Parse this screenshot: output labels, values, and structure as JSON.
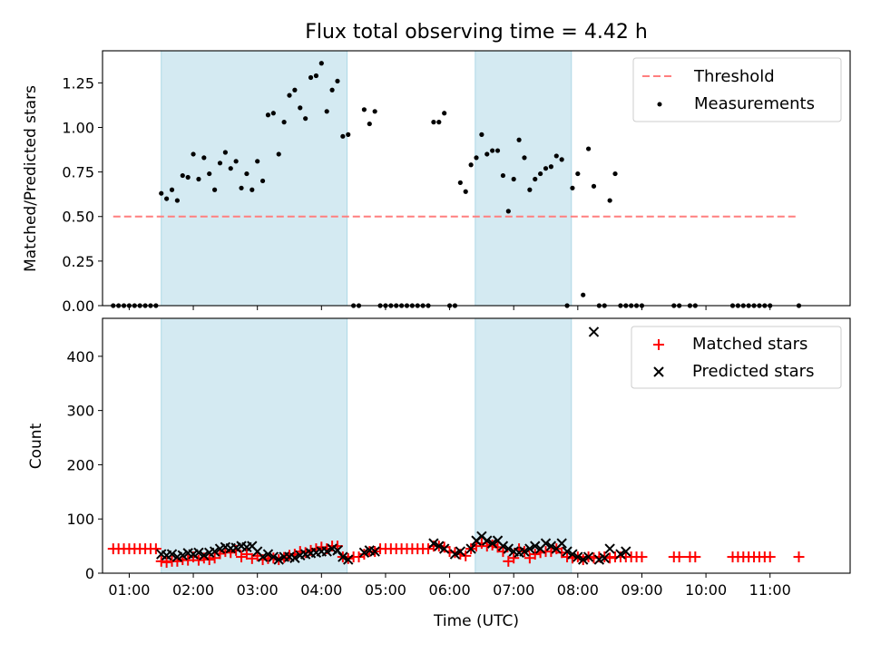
{
  "chart_data": [
    {
      "type": "scatter",
      "title": "Flux total observing time = 4.42 h",
      "xlabel": "",
      "ylabel": "Matched/Predicted stars",
      "xlim": [
        "00:35",
        "12:15"
      ],
      "ylim": [
        0,
        1.43
      ],
      "yticks": [
        "0.00",
        "0.25",
        "0.50",
        "0.75",
        "1.00",
        "1.25"
      ],
      "shaded_intervals": [
        [
          "01:30",
          "04:24"
        ],
        [
          "06:24",
          "07:54"
        ]
      ],
      "legend_position": "upper right",
      "series": [
        {
          "name": "Threshold",
          "kind": "line",
          "color": "#ff7f7f",
          "x": [
            "00:45",
            "11:27"
          ],
          "y": [
            0.5,
            0.5
          ]
        },
        {
          "name": "Measurements",
          "kind": "scatter",
          "color": "#000000",
          "x": [
            "00:45",
            "00:50",
            "00:55",
            "01:00",
            "01:05",
            "01:10",
            "01:15",
            "01:20",
            "01:25",
            "01:30",
            "01:35",
            "01:40",
            "01:45",
            "01:50",
            "01:55",
            "02:00",
            "02:05",
            "02:10",
            "02:15",
            "02:20",
            "02:25",
            "02:30",
            "02:35",
            "02:40",
            "02:45",
            "02:50",
            "02:55",
            "03:00",
            "03:05",
            "03:10",
            "03:15",
            "03:20",
            "03:25",
            "03:30",
            "03:35",
            "03:40",
            "03:45",
            "03:50",
            "03:55",
            "04:00",
            "04:05",
            "04:10",
            "04:15",
            "04:20",
            "04:25",
            "04:30",
            "04:35",
            "04:40",
            "04:45",
            "04:50",
            "04:55",
            "05:00",
            "05:05",
            "05:10",
            "05:15",
            "05:20",
            "05:25",
            "05:30",
            "05:35",
            "05:40",
            "05:45",
            "05:50",
            "05:55",
            "06:00",
            "06:05",
            "06:10",
            "06:15",
            "06:20",
            "06:25",
            "06:30",
            "06:35",
            "06:40",
            "06:45",
            "06:50",
            "06:55",
            "07:00",
            "07:05",
            "07:10",
            "07:15",
            "07:20",
            "07:25",
            "07:30",
            "07:35",
            "07:40",
            "07:45",
            "07:50",
            "07:55",
            "08:00",
            "08:05",
            "08:10",
            "08:15",
            "08:20",
            "08:25",
            "08:30",
            "08:35",
            "08:40",
            "08:45",
            "08:50",
            "08:55",
            "09:00",
            "09:30",
            "09:35",
            "09:45",
            "09:50",
            "10:25",
            "10:30",
            "10:35",
            "10:40",
            "10:45",
            "10:50",
            "10:55",
            "11:00",
            "11:27"
          ],
          "y": [
            0.0,
            0.0,
            0.0,
            0.0,
            0.0,
            0.0,
            0.0,
            0.0,
            0.0,
            0.63,
            0.6,
            0.65,
            0.59,
            0.73,
            0.72,
            0.85,
            0.71,
            0.83,
            0.74,
            0.65,
            0.8,
            0.86,
            0.77,
            0.81,
            0.66,
            0.74,
            0.65,
            0.81,
            0.7,
            1.07,
            1.08,
            0.85,
            1.03,
            1.18,
            1.21,
            1.11,
            1.05,
            1.28,
            1.29,
            1.36,
            1.09,
            1.21,
            1.26,
            0.95,
            0.96,
            0.0,
            0.0,
            1.1,
            1.02,
            1.09,
            0.0,
            0.0,
            0.0,
            0.0,
            0.0,
            0.0,
            0.0,
            0.0,
            0.0,
            0.0,
            1.03,
            1.03,
            1.08,
            0.0,
            0.0,
            0.69,
            0.64,
            0.79,
            0.83,
            0.96,
            0.85,
            0.87,
            0.87,
            0.73,
            0.53,
            0.71,
            0.93,
            0.83,
            0.65,
            0.71,
            0.74,
            0.77,
            0.78,
            0.84,
            0.82,
            0.0,
            0.66,
            0.74,
            0.06,
            0.88,
            0.67,
            0.0,
            0.0,
            0.59,
            0.74,
            0.0,
            0.0,
            0.0,
            0.0,
            0.0,
            0.0,
            0.0,
            0.0,
            0.0,
            0.0,
            0.0,
            0.0,
            0.0,
            0.0,
            0.0,
            0.0,
            0.0,
            0.0
          ]
        }
      ]
    },
    {
      "type": "scatter",
      "title": "",
      "xlabel": "Time (UTC)",
      "ylabel": "Count",
      "xlim": [
        "00:35",
        "12:15"
      ],
      "xticks": [
        "01:00",
        "02:00",
        "03:00",
        "04:00",
        "05:00",
        "06:00",
        "07:00",
        "08:00",
        "09:00",
        "10:00",
        "11:00"
      ],
      "ylim": [
        0,
        470
      ],
      "yticks": [
        "0",
        "100",
        "200",
        "300",
        "400"
      ],
      "shaded_intervals": [
        [
          "01:30",
          "04:24"
        ],
        [
          "06:24",
          "07:54"
        ]
      ],
      "legend_position": "upper right",
      "series": [
        {
          "name": "Matched stars",
          "kind": "scatter",
          "marker": "plus",
          "color": "#ff0000",
          "x": [
            "00:45",
            "00:50",
            "00:55",
            "01:00",
            "01:05",
            "01:10",
            "01:15",
            "01:20",
            "01:25",
            "01:30",
            "01:35",
            "01:40",
            "01:45",
            "01:50",
            "01:55",
            "02:00",
            "02:05",
            "02:10",
            "02:15",
            "02:20",
            "02:25",
            "02:30",
            "02:35",
            "02:40",
            "02:45",
            "02:50",
            "02:55",
            "03:00",
            "03:05",
            "03:10",
            "03:15",
            "03:20",
            "03:25",
            "03:30",
            "03:35",
            "03:40",
            "03:45",
            "03:50",
            "03:55",
            "04:00",
            "04:05",
            "04:10",
            "04:15",
            "04:20",
            "04:25",
            "04:30",
            "04:35",
            "04:40",
            "04:45",
            "04:50",
            "04:55",
            "05:00",
            "05:05",
            "05:10",
            "05:15",
            "05:20",
            "05:25",
            "05:30",
            "05:35",
            "05:40",
            "05:45",
            "05:50",
            "05:55",
            "06:00",
            "06:05",
            "06:10",
            "06:15",
            "06:20",
            "06:25",
            "06:30",
            "06:35",
            "06:40",
            "06:45",
            "06:50",
            "06:55",
            "07:00",
            "07:05",
            "07:10",
            "07:15",
            "07:20",
            "07:25",
            "07:30",
            "07:35",
            "07:40",
            "07:45",
            "07:50",
            "07:55",
            "08:00",
            "08:05",
            "08:10",
            "08:15",
            "08:20",
            "08:25",
            "08:30",
            "08:35",
            "08:40",
            "08:45",
            "08:50",
            "08:55",
            "09:00",
            "09:30",
            "09:35",
            "09:45",
            "09:50",
            "10:25",
            "10:30",
            "10:35",
            "10:40",
            "10:45",
            "10:50",
            "10:55",
            "11:00",
            "11:27"
          ],
          "y": [
            45,
            45,
            45,
            45,
            45,
            45,
            45,
            45,
            45,
            22,
            20,
            22,
            22,
            25,
            24,
            30,
            24,
            28,
            25,
            28,
            36,
            40,
            38,
            42,
            30,
            35,
            27,
            32,
            25,
            27,
            28,
            25,
            29,
            33,
            35,
            40,
            38,
            42,
            45,
            48,
            45,
            50,
            50,
            30,
            27,
            30,
            30,
            35,
            40,
            40,
            45,
            45,
            45,
            45,
            45,
            45,
            45,
            45,
            45,
            45,
            50,
            50,
            48,
            40,
            38,
            35,
            32,
            45,
            50,
            55,
            50,
            52,
            48,
            40,
            22,
            28,
            45,
            40,
            28,
            35,
            38,
            40,
            40,
            45,
            38,
            30,
            28,
            30,
            25,
            30,
            28,
            30,
            30,
            28,
            30,
            30,
            30,
            30,
            30,
            30,
            30,
            30,
            30,
            30,
            30,
            30,
            30,
            30,
            30,
            30,
            30,
            30,
            30
          ]
        },
        {
          "name": "Predicted stars",
          "kind": "scatter",
          "marker": "x",
          "color": "#000000",
          "x": [
            "01:30",
            "01:35",
            "01:40",
            "01:45",
            "01:50",
            "01:55",
            "02:00",
            "02:05",
            "02:10",
            "02:15",
            "02:20",
            "02:25",
            "02:30",
            "02:35",
            "02:40",
            "02:45",
            "02:50",
            "02:55",
            "03:00",
            "03:05",
            "03:10",
            "03:15",
            "03:20",
            "03:25",
            "03:30",
            "03:35",
            "03:40",
            "03:45",
            "03:50",
            "03:55",
            "04:00",
            "04:05",
            "04:10",
            "04:15",
            "04:20",
            "04:25",
            "04:40",
            "04:45",
            "04:50",
            "05:45",
            "05:50",
            "05:55",
            "06:05",
            "06:10",
            "06:20",
            "06:25",
            "06:30",
            "06:35",
            "06:40",
            "06:45",
            "06:50",
            "06:55",
            "07:00",
            "07:05",
            "07:10",
            "07:15",
            "07:20",
            "07:25",
            "07:30",
            "07:35",
            "07:40",
            "07:45",
            "07:50",
            "07:55",
            "08:00",
            "08:05",
            "08:10",
            "08:15",
            "08:20",
            "08:25",
            "08:30",
            "08:40",
            "08:45"
          ],
          "y": [
            35,
            33,
            35,
            30,
            33,
            37,
            35,
            38,
            33,
            38,
            40,
            45,
            48,
            46,
            47,
            50,
            48,
            50,
            40,
            30,
            35,
            30,
            25,
            30,
            30,
            28,
            33,
            35,
            37,
            38,
            40,
            40,
            45,
            42,
            30,
            25,
            38,
            42,
            40,
            55,
            50,
            45,
            35,
            40,
            45,
            60,
            68,
            60,
            55,
            60,
            50,
            45,
            40,
            38,
            40,
            45,
            50,
            45,
            55,
            50,
            45,
            55,
            40,
            35,
            30,
            25,
            30,
            445,
            25,
            28,
            45,
            35,
            40
          ]
        }
      ]
    }
  ]
}
